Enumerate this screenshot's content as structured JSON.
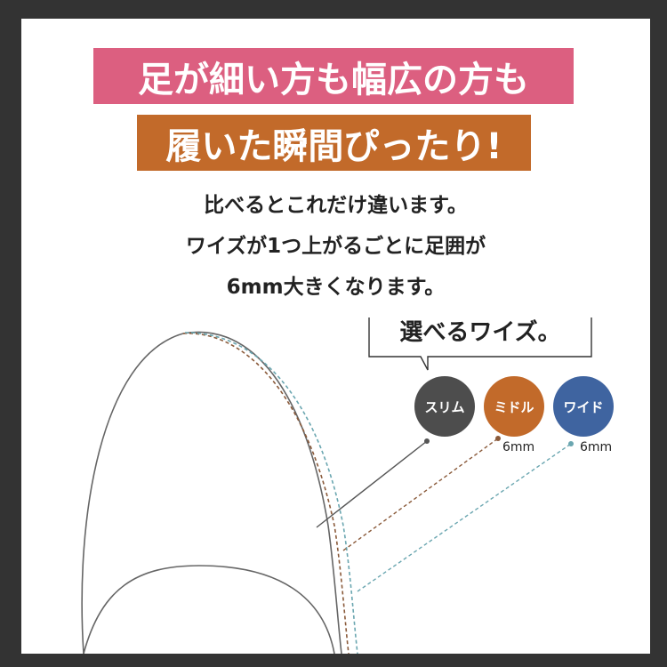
{
  "headline": {
    "line1": "足が細い方も幅広の方も",
    "line2": "履いた瞬間ぴったり!"
  },
  "description": [
    "比べるとこれだけ違います。",
    "ワイズが1つ上がるごとに足囲が",
    "6mm大きくなります。"
  ],
  "callout": "選べるワイズ。",
  "widths": [
    {
      "label": "スリム",
      "color": "#4d4d4d"
    },
    {
      "label": "ミドル",
      "color": "#c26a2a",
      "increment": "6mm"
    },
    {
      "label": "ワイド",
      "color": "#3f64a0",
      "increment": "6mm"
    }
  ],
  "colors": {
    "frame": "#333333",
    "pink": "#dc5f80",
    "orange": "#c26a2a",
    "line_middle": "#8a5a3a",
    "line_wide": "#6aa6b0"
  }
}
